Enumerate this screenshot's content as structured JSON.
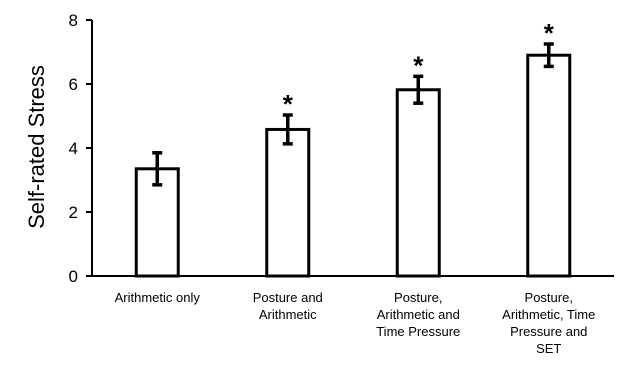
{
  "chart_data": {
    "type": "bar",
    "title": "",
    "xlabel": "",
    "ylabel": "Self-rated Stress",
    "ylim": [
      0,
      8
    ],
    "yticks": [
      0,
      2,
      4,
      6,
      8
    ],
    "grid": false,
    "categories": [
      "Arithmetic only",
      "Posture and Arithmetic",
      "Posture, Arithmetic and Time Pressure",
      "Posture, Arithmetic, Time Pressure and SET"
    ],
    "category_lines": [
      [
        "Arithmetic only"
      ],
      [
        "Posture and",
        "Arithmetic"
      ],
      [
        "Posture,",
        "Arithmetic and",
        "Time Pressure"
      ],
      [
        "Posture,",
        "Arithmetic, Time",
        "Pressure and",
        "SET"
      ]
    ],
    "values": [
      3.35,
      4.58,
      5.82,
      6.9
    ],
    "errors": [
      0.5,
      0.45,
      0.42,
      0.35
    ],
    "significance": [
      "",
      "*",
      "*",
      "*"
    ],
    "bar_fill": "#ffffff",
    "bar_stroke": "#000000"
  }
}
